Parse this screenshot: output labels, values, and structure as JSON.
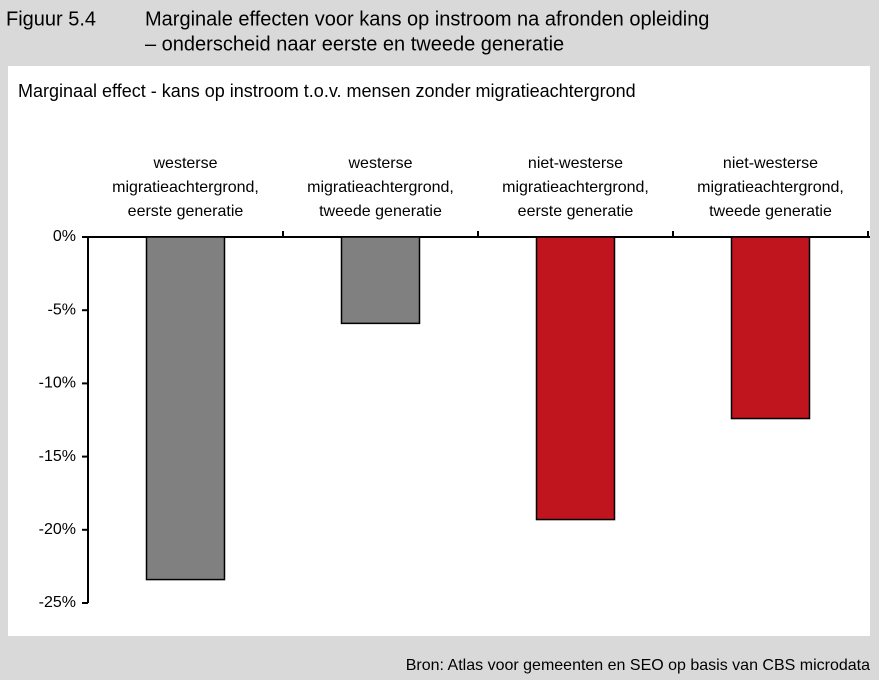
{
  "chart_data": {
    "type": "bar",
    "figure_label": "Figuur 5.4",
    "title": [
      "Marginale effecten voor kans op instroom na afronden opleiding",
      "– onderscheid naar eerste en tweede generatie"
    ],
    "y_label": "Marginaal effect  - kans op instroom t.o.v. mensen zonder migratieachtergrond",
    "source": "Bron: Atlas voor gemeenten en SEO op basis van CBS microdata",
    "categories": [
      "westerse migratieachtergrond, eerste generatie",
      "westerse migratieachtergrond, tweede generatie",
      "niet-westerse migratieachtergrond, eerste generatie",
      "niet-westerse migratieachtergrond, tweede generatie"
    ],
    "values": [
      -23.4,
      -5.9,
      -19.3,
      -12.4
    ],
    "colors": [
      "#808080",
      "#808080",
      "#c0141e",
      "#c0141e"
    ],
    "ylim": [
      -25,
      0
    ],
    "yticks": [
      {
        "value": 0,
        "label": "0%"
      },
      {
        "value": -5,
        "label": "-5%"
      },
      {
        "value": -10,
        "label": "-10%"
      },
      {
        "value": -15,
        "label": "-15%"
      },
      {
        "value": -20,
        "label": "-20%"
      },
      {
        "value": -25,
        "label": "-25%"
      }
    ]
  }
}
